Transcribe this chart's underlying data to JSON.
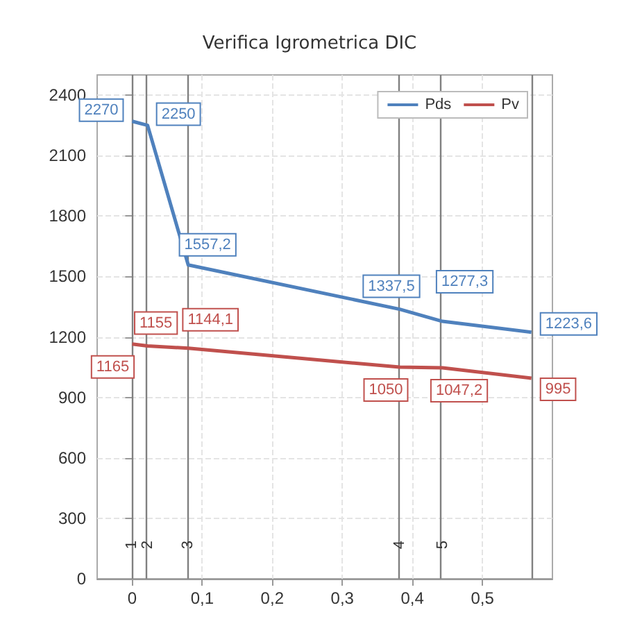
{
  "chart_data": {
    "type": "line",
    "title": "Verifica Igrometrica DIC",
    "x": [
      0,
      0.022,
      0.08,
      0.382,
      0.443,
      0.57
    ],
    "series": [
      {
        "name": "Pds",
        "color": "#4f81bd",
        "values": [
          2270,
          2250,
          1557.2,
          1337.5,
          1277.3,
          1223.6
        ],
        "value_labels": [
          "2270",
          "2250",
          "1557,2",
          "1337,5",
          "1277,3",
          "1223,6"
        ]
      },
      {
        "name": "Pv",
        "color": "#c0504d",
        "values": [
          1165,
          1155,
          1144.1,
          1050,
          1047.2,
          995
        ],
        "value_labels": [
          "1165",
          "1155",
          "1144,1",
          "1050",
          "1047,2",
          "995"
        ]
      }
    ],
    "xlim": [
      -0.05,
      0.6
    ],
    "xticks": [
      0,
      {
        "value": 0.1,
        "label": "0,1"
      },
      {
        "value": 0.2,
        "label": "0,2"
      },
      {
        "value": 0.3,
        "label": "0,3"
      },
      {
        "value": 0.4,
        "label": "0,4"
      },
      {
        "value": 0.5,
        "label": "0,5"
      }
    ],
    "ylim": [
      0,
      2500
    ],
    "yticks": [
      0,
      300,
      600,
      900,
      1200,
      1500,
      1800,
      2100,
      2400
    ],
    "ref_lines": [
      {
        "axis": "x",
        "value": 0,
        "color": "#808080"
      },
      {
        "axis": "x",
        "value": 0.022,
        "color": "#808080"
      },
      {
        "axis": "x",
        "value": 0.08,
        "color": "#808080"
      },
      {
        "axis": "x",
        "value": 0.382,
        "color": "#808080"
      },
      {
        "axis": "x",
        "value": 0.443,
        "color": "#808080"
      },
      {
        "axis": "x",
        "value": 0.57,
        "color": "#808080"
      }
    ],
    "annotations": [
      {
        "text": "1",
        "x": 0,
        "y": 120
      },
      {
        "text": "2",
        "x": 0.022,
        "y": 120
      },
      {
        "text": "3",
        "x": 0.08,
        "y": 120
      },
      {
        "text": "4",
        "x": 0.382,
        "y": 120
      },
      {
        "text": "5",
        "x": 0.443,
        "y": 120
      }
    ],
    "grid": true,
    "legend": "top right",
    "marker": "none",
    "line_style": "solid"
  }
}
